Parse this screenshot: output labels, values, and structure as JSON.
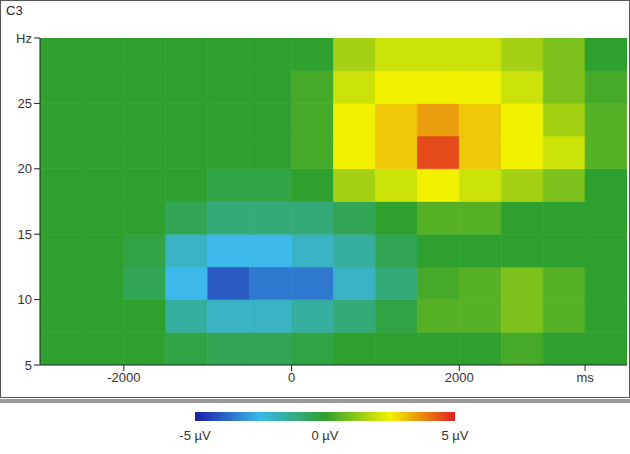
{
  "chart_data": {
    "type": "heatmap",
    "title": "C3",
    "x_bins": [
      -3000,
      -2500,
      -2000,
      -1500,
      -1000,
      -500,
      0,
      500,
      1000,
      1500,
      2000,
      2500,
      3000,
      3500,
      4000
    ],
    "y_bins": [
      5,
      7.5,
      10,
      12.5,
      15,
      17.5,
      20,
      22.5,
      25,
      27.5,
      30
    ],
    "z": [
      [
        0,
        0,
        0,
        -0.3,
        -0.5,
        -0.5,
        -0.3,
        0,
        0,
        0,
        0,
        0.3,
        0,
        0
      ],
      [
        0,
        0,
        0,
        -1.5,
        -2,
        -2,
        -1.5,
        -1,
        -0.3,
        0.5,
        0.5,
        1,
        0.5,
        0
      ],
      [
        0,
        0,
        -0.5,
        -2.5,
        -4,
        -3.5,
        -3.5,
        -2,
        -1,
        0.3,
        0.5,
        1,
        0.5,
        0
      ],
      [
        0,
        0,
        -0.3,
        -2,
        -2.5,
        -2.5,
        -2,
        -1.5,
        -0.5,
        0,
        0,
        0,
        0,
        0
      ],
      [
        0,
        0,
        0,
        -0.5,
        -1,
        -1,
        -1,
        -0.5,
        0,
        0.5,
        0.5,
        0,
        0,
        0
      ],
      [
        0,
        0,
        0,
        0,
        -0.3,
        -0.3,
        0,
        1.5,
        2,
        2.5,
        2,
        1.5,
        1,
        0
      ],
      [
        0,
        0,
        0,
        0,
        0,
        0,
        0.3,
        2.5,
        3,
        4.5,
        3,
        2.5,
        2,
        0.5
      ],
      [
        0,
        0,
        0,
        0,
        0,
        0,
        0.3,
        2.5,
        3,
        3.5,
        3,
        2.5,
        1.5,
        0.5
      ],
      [
        0,
        0,
        0,
        0,
        0,
        0,
        0.3,
        2,
        2.5,
        2.5,
        2.5,
        2,
        1,
        0.3
      ],
      [
        0,
        0,
        0,
        0,
        0,
        0,
        0,
        1.5,
        2,
        2,
        2,
        1.5,
        1,
        0
      ]
    ],
    "xlim": [
      -3000,
      4000
    ],
    "xticks": [
      -2000,
      0,
      2000,
      {
        "value": 3500,
        "label": "ms"
      }
    ],
    "ylim": [
      5,
      30
    ],
    "yticks": [
      5,
      10,
      15,
      20,
      25,
      {
        "value": 30,
        "label": "Hz"
      }
    ],
    "colorbar": {
      "range": [
        -5,
        5
      ],
      "ticks": [
        {
          "value": -5,
          "label": "-5 µV"
        },
        {
          "value": 0,
          "label": "0 µV"
        },
        {
          "value": 5,
          "label": "5 µV"
        }
      ],
      "colors": [
        "#1c1ca8",
        "#3cb8ea",
        "#2ea02e",
        "#f2f200",
        "#e02020"
      ]
    }
  }
}
